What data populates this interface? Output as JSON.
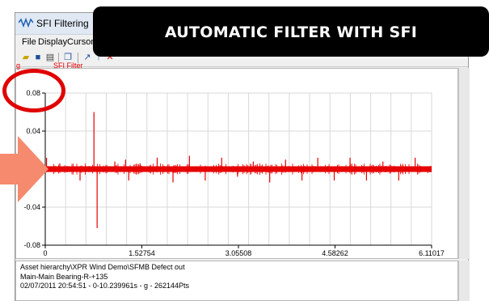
{
  "window": {
    "title": "SFI Filtering"
  },
  "menu": {
    "items": [
      "File",
      "Display",
      "Cursors"
    ]
  },
  "banner": {
    "text": "AUTOMATIC FILTER WITH SFI"
  },
  "legend": {
    "unit": "g",
    "series": "SFI Filter"
  },
  "info": {
    "line1": "Asset hierarchy\\XPR Wind Demo\\SFMB Defect out",
    "line2": "Main-Main Bearing-R-+135",
    "line3": "02/07/2011 20:54:51 - 0-10.239961s - g - 262144Pts"
  },
  "colors": {
    "signal": "#e60000",
    "grid": "#d8d8d8",
    "banner": "#000000",
    "callout": "#e00000",
    "arrow": "#f58a6e"
  },
  "chart_data": {
    "type": "line",
    "series": [
      {
        "values": {
          "baseline_band": [
            -0.003,
            0.003
          ],
          "spikes": [
            {
              "x": 0.02,
              "y": 0.012
            },
            {
              "x": 0.23,
              "y": 0.006
            },
            {
              "x": 0.55,
              "y": -0.012
            },
            {
              "x": 0.77,
              "y": 0.06
            },
            {
              "x": 0.82,
              "y": -0.062
            },
            {
              "x": 1.1,
              "y": 0.008
            },
            {
              "x": 1.27,
              "y": 0.01
            },
            {
              "x": 1.32,
              "y": -0.012
            },
            {
              "x": 1.5,
              "y": 0.006
            },
            {
              "x": 1.77,
              "y": 0.012
            },
            {
              "x": 2.02,
              "y": -0.014
            },
            {
              "x": 2.28,
              "y": 0.014
            },
            {
              "x": 2.53,
              "y": -0.012
            },
            {
              "x": 2.79,
              "y": 0.012
            },
            {
              "x": 3.04,
              "y": -0.008
            },
            {
              "x": 3.29,
              "y": 0.008
            },
            {
              "x": 3.55,
              "y": -0.014
            },
            {
              "x": 3.8,
              "y": 0.01
            },
            {
              "x": 4.06,
              "y": -0.012
            },
            {
              "x": 4.31,
              "y": 0.012
            },
            {
              "x": 4.57,
              "y": -0.012
            },
            {
              "x": 4.82,
              "y": 0.012
            },
            {
              "x": 5.08,
              "y": -0.012
            },
            {
              "x": 5.34,
              "y": 0.008
            },
            {
              "x": 5.59,
              "y": -0.012
            },
            {
              "x": 5.85,
              "y": 0.012
            },
            {
              "x": 6.05,
              "y": -0.004
            }
          ]
        }
      }
    ],
    "xlim": [
      0,
      6.11017
    ],
    "ylim": [
      -0.08,
      0.08
    ],
    "x_ticks": [
      "0",
      "1.52754",
      "3.05508",
      "4.58262",
      "6.11017"
    ],
    "y_ticks": [
      "0.08",
      "0.04",
      "0",
      "-0.04",
      "-0.08"
    ],
    "x_tick_values": [
      0,
      1.52754,
      3.05508,
      4.58262,
      6.11017
    ],
    "y_tick_values": [
      0.08,
      0.04,
      0,
      -0.04,
      -0.08
    ],
    "xlabel": "",
    "ylabel": "g",
    "grid": true
  }
}
